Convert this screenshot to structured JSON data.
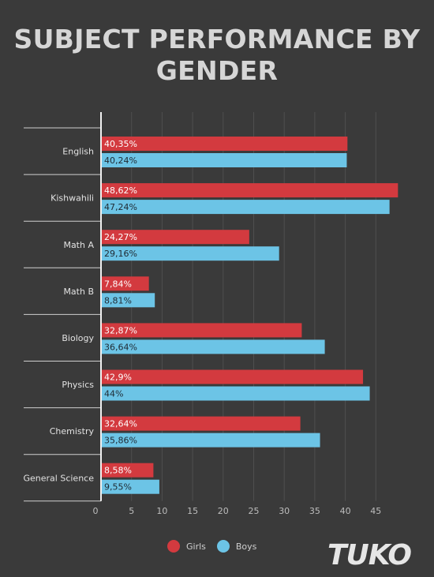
{
  "title": {
    "line1": "SUBJECT PERFORMANCE BY",
    "line2": "GENDER"
  },
  "colors": {
    "girls": "#d33a3f",
    "boys": "#6cc4e6",
    "background": "#3a3a3a"
  },
  "chart_data": {
    "type": "bar",
    "orientation": "horizontal",
    "categories": [
      "English",
      "Kishwahili",
      "Math A",
      "Math B",
      "Biology",
      "Physics",
      "Chemistry",
      "General Science"
    ],
    "series": [
      {
        "name": "Girls",
        "values": [
          40.35,
          48.62,
          24.27,
          7.84,
          32.87,
          42.9,
          32.64,
          8.58
        ],
        "labels": [
          "40,35%",
          "48,62%",
          "24,27%",
          "7,84%",
          "32,87%",
          "42,9%",
          "32,64%",
          "8,58%"
        ]
      },
      {
        "name": "Boys",
        "values": [
          40.24,
          47.24,
          29.16,
          8.81,
          36.64,
          44,
          35.86,
          9.55
        ],
        "labels": [
          "40,24%",
          "47,24%",
          "29,16%",
          "8,81%",
          "36,64%",
          "44%",
          "35,86%",
          "9,55%"
        ]
      }
    ],
    "xticks": [
      0,
      5,
      10,
      15,
      20,
      25,
      30,
      35,
      40,
      45
    ],
    "xlim": [
      0,
      49
    ],
    "grid": true,
    "legend": "bottom"
  },
  "logo": "TUKO"
}
